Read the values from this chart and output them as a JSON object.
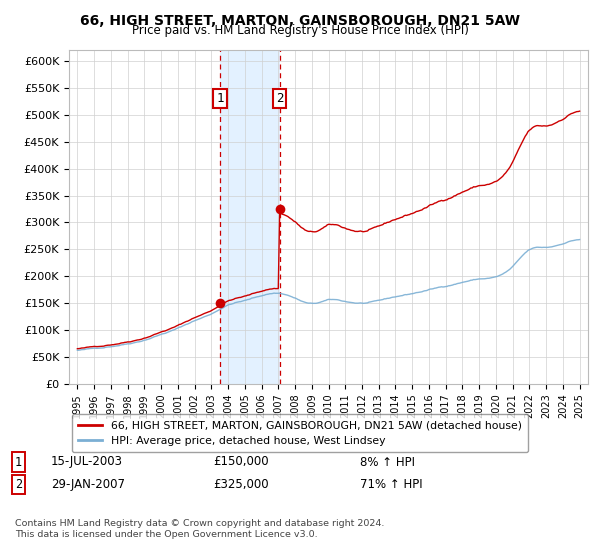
{
  "title1": "66, HIGH STREET, MARTON, GAINSBOROUGH, DN21 5AW",
  "title2": "Price paid vs. HM Land Registry's House Price Index (HPI)",
  "legend_line1": "66, HIGH STREET, MARTON, GAINSBOROUGH, DN21 5AW (detached house)",
  "legend_line2": "HPI: Average price, detached house, West Lindsey",
  "transaction1_date": "15-JUL-2003",
  "transaction1_price": "£150,000",
  "transaction1_hpi": "8% ↑ HPI",
  "transaction2_date": "29-JAN-2007",
  "transaction2_price": "£325,000",
  "transaction2_hpi": "71% ↑ HPI",
  "footnote1": "Contains HM Land Registry data © Crown copyright and database right 2024.",
  "footnote2": "This data is licensed under the Open Government Licence v3.0.",
  "sale1_year": 2003.54,
  "sale1_price": 150000,
  "sale2_year": 2007.08,
  "sale2_price": 325000,
  "price_color": "#cc0000",
  "hpi_color": "#7bafd4",
  "shade_color": "#ddeeff",
  "ylim_min": 0,
  "ylim_max": 620000,
  "yticks": [
    0,
    50000,
    100000,
    150000,
    200000,
    250000,
    300000,
    350000,
    400000,
    450000,
    500000,
    550000,
    600000
  ],
  "ytick_labels": [
    "£0",
    "£50K",
    "£100K",
    "£150K",
    "£200K",
    "£250K",
    "£300K",
    "£350K",
    "£400K",
    "£450K",
    "£500K",
    "£550K",
    "£600K"
  ],
  "xlim_min": 1994.5,
  "xlim_max": 2025.5
}
